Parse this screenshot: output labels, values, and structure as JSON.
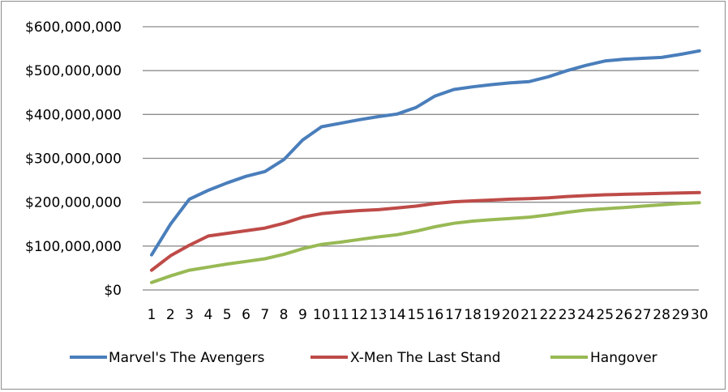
{
  "chart_data": {
    "type": "line",
    "title": "",
    "xlabel": "",
    "ylabel": "",
    "x": [
      1,
      2,
      3,
      4,
      5,
      6,
      7,
      8,
      9,
      10,
      11,
      12,
      13,
      14,
      15,
      16,
      17,
      18,
      19,
      20,
      21,
      22,
      23,
      24,
      25,
      26,
      27,
      28,
      29,
      30
    ],
    "y_ticks": [
      "$0",
      "$100,000,000",
      "$200,000,000",
      "$300,000,000",
      "$400,000,000",
      "$500,000,000",
      "$600,000,000"
    ],
    "ylim": [
      0,
      600000000
    ],
    "grid": "horizontal",
    "legend_position": "bottom",
    "series": [
      {
        "name": "Marvel's The Avengers",
        "color": "#4a7ebb",
        "values": [
          80000000,
          150000000,
          207000000,
          227000000,
          244000000,
          259000000,
          270000000,
          297000000,
          342000000,
          372000000,
          380000000,
          388000000,
          395000000,
          401000000,
          416000000,
          442000000,
          457000000,
          463000000,
          468000000,
          472000000,
          475000000,
          486000000,
          500000000,
          512000000,
          522000000,
          526000000,
          528000000,
          530000000,
          537000000,
          545000000
        ]
      },
      {
        "name": "X-Men The Last Stand",
        "color": "#be4b48",
        "values": [
          45000000,
          78000000,
          102000000,
          123000000,
          129000000,
          135000000,
          141000000,
          152000000,
          166000000,
          174000000,
          178000000,
          181000000,
          183000000,
          187000000,
          191000000,
          197000000,
          201000000,
          203000000,
          205000000,
          207000000,
          208000000,
          210000000,
          213000000,
          215000000,
          217000000,
          218000000,
          219000000,
          220000000,
          221000000,
          222000000
        ]
      },
      {
        "name": "Hangover",
        "color": "#98b954",
        "values": [
          17000000,
          32000000,
          45000000,
          52000000,
          59000000,
          65000000,
          71000000,
          81000000,
          94000000,
          104000000,
          109000000,
          115000000,
          121000000,
          126000000,
          134000000,
          144000000,
          152000000,
          157000000,
          160000000,
          163000000,
          166000000,
          171000000,
          177000000,
          182000000,
          185000000,
          188000000,
          191000000,
          194000000,
          197000000,
          199000000
        ]
      }
    ]
  }
}
